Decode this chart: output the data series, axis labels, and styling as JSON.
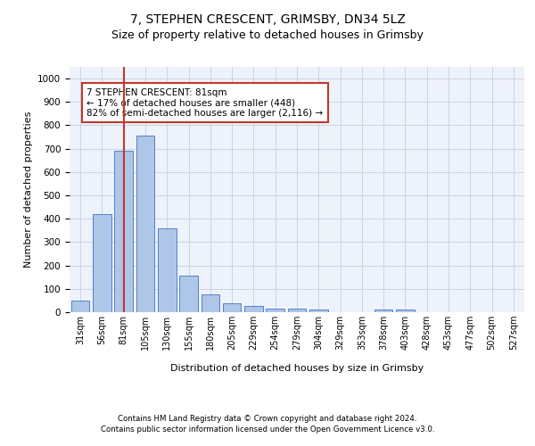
{
  "title1": "7, STEPHEN CRESCENT, GRIMSBY, DN34 5LZ",
  "title2": "Size of property relative to detached houses in Grimsby",
  "xlabel": "Distribution of detached houses by size in Grimsby",
  "ylabel": "Number of detached properties",
  "categories": [
    "31sqm",
    "56sqm",
    "81sqm",
    "105sqm",
    "130sqm",
    "155sqm",
    "180sqm",
    "205sqm",
    "229sqm",
    "254sqm",
    "279sqm",
    "304sqm",
    "329sqm",
    "353sqm",
    "378sqm",
    "403sqm",
    "428sqm",
    "453sqm",
    "477sqm",
    "502sqm",
    "527sqm"
  ],
  "values": [
    50,
    420,
    690,
    755,
    360,
    155,
    75,
    40,
    27,
    17,
    17,
    10,
    0,
    0,
    12,
    12,
    0,
    0,
    0,
    0,
    0
  ],
  "bar_color": "#aec6e8",
  "bar_edge_color": "#4472c4",
  "vline_x": 2,
  "vline_color": "#c0392b",
  "annotation_text": "7 STEPHEN CRESCENT: 81sqm\n← 17% of detached houses are smaller (448)\n82% of semi-detached houses are larger (2,116) →",
  "annotation_box_color": "#c0392b",
  "ylim": [
    0,
    1050
  ],
  "yticks": [
    0,
    100,
    200,
    300,
    400,
    500,
    600,
    700,
    800,
    900,
    1000
  ],
  "footnote1": "Contains HM Land Registry data © Crown copyright and database right 2024.",
  "footnote2": "Contains public sector information licensed under the Open Government Licence v3.0.",
  "title1_fontsize": 10,
  "title2_fontsize": 9,
  "xlabel_fontsize": 8,
  "ylabel_fontsize": 8,
  "grid_color": "#c8d4e8",
  "bg_color": "#eef2fa"
}
